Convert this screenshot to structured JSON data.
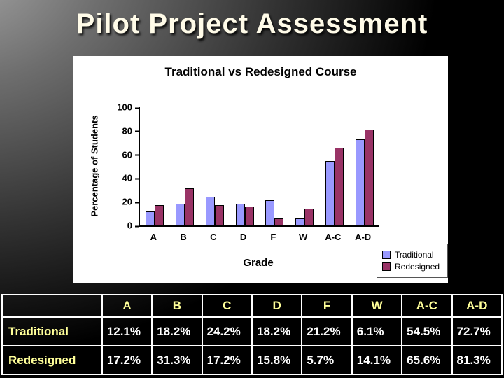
{
  "slide": {
    "title": "Pilot Project Assessment"
  },
  "chart": {
    "title": "Traditional vs Redesigned Course",
    "y_axis_title": "Percentage of Students",
    "x_axis_title": "Grade"
  },
  "chart_data": {
    "type": "bar",
    "title": "Traditional vs Redesigned Course",
    "xlabel": "Grade",
    "ylabel": "Percentage of Students",
    "categories": [
      "A",
      "B",
      "C",
      "D",
      "F",
      "W",
      "A-C",
      "A-D"
    ],
    "series": [
      {
        "name": "Traditional",
        "color": "#9999ff",
        "values": [
          12.1,
          18.2,
          24.2,
          18.2,
          21.2,
          6.1,
          54.5,
          72.7
        ]
      },
      {
        "name": "Redesigned",
        "color": "#993366",
        "values": [
          17.2,
          31.3,
          17.2,
          15.8,
          5.7,
          14.1,
          65.6,
          81.3
        ]
      }
    ],
    "ylim": [
      0,
      100
    ],
    "yticks": [
      0,
      20,
      40,
      60,
      80,
      100
    ],
    "grid": false,
    "legend_position": "bottom-right",
    "legend": [
      "Traditional",
      "Redesigned"
    ]
  },
  "table": {
    "headers": [
      "",
      "A",
      "B",
      "C",
      "D",
      "F",
      "W",
      "A-C",
      "A-D"
    ],
    "rows": [
      {
        "label": "Traditional",
        "values": [
          "12.1%",
          "18.2%",
          "24.2%",
          "18.2%",
          "21.2%",
          "6.1%",
          "54.5%",
          "72.7%"
        ]
      },
      {
        "label": "Redesigned",
        "values": [
          "17.2%",
          "31.3%",
          "17.2%",
          "15.8%",
          "5.7%",
          "14.1%",
          "65.6%",
          "81.3%"
        ]
      }
    ]
  },
  "colors": {
    "traditional_series": "#9999ff",
    "redesigned_series": "#993366",
    "table_border": "#ffffff",
    "table_header_text": "#ffff99",
    "table_value_text": "#ffffff",
    "chart_background": "#ffffff",
    "slide_title_text": "#fffbe8"
  }
}
